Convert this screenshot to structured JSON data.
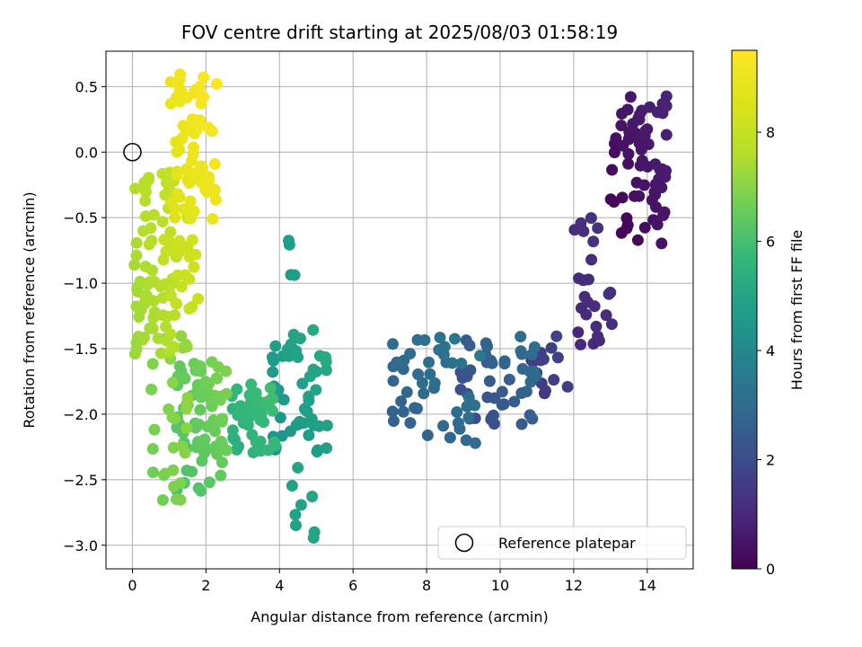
{
  "chart_data": {
    "type": "scatter",
    "title": "FOV centre drift starting at 2025/08/03 01:58:19",
    "xlabel": "Angular distance from reference (arcmin)",
    "ylabel": "Rotation from reference (arcmin)",
    "xlim": [
      -0.72,
      15.25
    ],
    "ylim": [
      -3.18,
      0.77
    ],
    "xticks": [
      0,
      2,
      4,
      6,
      8,
      10,
      12,
      14
    ],
    "xtick_labels": [
      "0",
      "2",
      "4",
      "6",
      "8",
      "10",
      "12",
      "14"
    ],
    "yticks": [
      -3.0,
      -2.5,
      -2.0,
      -1.5,
      -1.0,
      -0.5,
      0.0,
      0.5
    ],
    "ytick_labels": [
      "−3.0",
      "−2.5",
      "−2.0",
      "−1.5",
      "−1.0",
      "−0.5",
      "0.0",
      "0.5"
    ],
    "grid": true,
    "legend": {
      "placement": "lower-right",
      "entries": [
        "Reference platepar"
      ]
    },
    "colorbar": {
      "label": "Hours from first FF file",
      "range": [
        0,
        9.5
      ],
      "ticks": [
        0,
        2,
        4,
        6,
        8
      ],
      "tick_labels": [
        "0",
        "2",
        "4",
        "6",
        "8"
      ],
      "colormap": "viridis"
    },
    "reference_point": {
      "x": 0,
      "y": 0
    },
    "clusters": [
      {
        "x": [
          13.0,
          14.6
        ],
        "y": [
          -0.7,
          0.45
        ],
        "t": [
          0.0,
          0.9
        ],
        "n": 70
      },
      {
        "x": [
          12.0,
          13.3
        ],
        "y": [
          -1.5,
          -0.45
        ],
        "t": [
          0.9,
          1.4
        ],
        "n": 25
      },
      {
        "x": [
          10.8,
          11.9
        ],
        "y": [
          -1.85,
          -1.4
        ],
        "t": [
          1.4,
          1.8
        ],
        "n": 14
      },
      {
        "x": [
          8.9,
          11.0
        ],
        "y": [
          -2.15,
          -1.4
        ],
        "t": [
          1.8,
          3.2
        ],
        "n": 45
      },
      {
        "x": [
          7.0,
          9.5
        ],
        "y": [
          -2.25,
          -1.4
        ],
        "t": [
          2.5,
          3.5
        ],
        "n": 45
      },
      {
        "x": [
          3.8,
          5.3
        ],
        "y": [
          -2.3,
          -1.35
        ],
        "t": [
          4.3,
          5.3
        ],
        "n": 50
      },
      {
        "x": [
          4.2,
          4.45
        ],
        "y": [
          -1.0,
          -0.62
        ],
        "t": [
          4.6,
          4.9
        ],
        "n": 4
      },
      {
        "x": [
          4.3,
          5.0
        ],
        "y": [
          -3.0,
          -2.4
        ],
        "t": [
          4.8,
          5.1
        ],
        "n": 8
      },
      {
        "x": [
          2.7,
          3.9
        ],
        "y": [
          -2.3,
          -1.75
        ],
        "t": [
          5.3,
          6.0
        ],
        "n": 45
      },
      {
        "x": [
          1.2,
          2.6
        ],
        "y": [
          -2.6,
          -1.6
        ],
        "t": [
          6.0,
          6.9
        ],
        "n": 75
      },
      {
        "x": [
          0.5,
          1.5
        ],
        "y": [
          -2.7,
          -1.4
        ],
        "t": [
          6.6,
          7.2
        ],
        "n": 30
      },
      {
        "x": [
          0.0,
          1.2
        ],
        "y": [
          -1.55,
          -0.15
        ],
        "t": [
          7.2,
          8.0
        ],
        "n": 75
      },
      {
        "x": [
          0.8,
          1.8
        ],
        "y": [
          -1.2,
          -0.4
        ],
        "t": [
          7.8,
          8.4
        ],
        "n": 25
      },
      {
        "x": [
          1.0,
          2.3
        ],
        "y": [
          -0.55,
          0.6
        ],
        "t": [
          8.5,
          9.5
        ],
        "n": 65
      }
    ]
  }
}
